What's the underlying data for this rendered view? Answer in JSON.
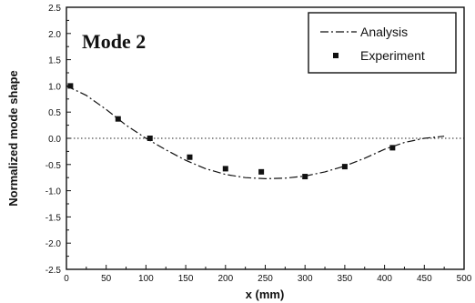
{
  "chart_data": {
    "type": "line",
    "annotation": "Mode 2",
    "xlabel": "x (mm)",
    "ylabel": "Normalized mode shape",
    "xlim": [
      0,
      500
    ],
    "ylim": [
      -2.5,
      2.5
    ],
    "x_ticks": [
      0,
      50,
      100,
      150,
      200,
      250,
      300,
      350,
      400,
      450,
      500
    ],
    "y_ticks": [
      2.5,
      2.0,
      1.5,
      1.0,
      0.5,
      0.0,
      -0.5,
      -1.0,
      -1.5,
      -2.0,
      -2.5
    ],
    "y_tick_labels": [
      "2.5",
      "2.0",
      "1.5",
      "1.0",
      "0.5",
      "0.0",
      "-0.5",
      "-1.0",
      "-1.5",
      "-2.0",
      "-2.5"
    ],
    "zero_line": "dotted",
    "legend_position": "top-right",
    "series": [
      {
        "name": "Analysis",
        "style": "dash-dot line",
        "x": [
          0,
          25,
          50,
          75,
          100,
          125,
          150,
          175,
          200,
          225,
          250,
          275,
          300,
          325,
          350,
          375,
          400,
          425,
          450,
          475
        ],
        "y": [
          1.0,
          0.82,
          0.55,
          0.25,
          0.0,
          -0.22,
          -0.42,
          -0.58,
          -0.69,
          -0.75,
          -0.77,
          -0.76,
          -0.72,
          -0.64,
          -0.53,
          -0.38,
          -0.21,
          -0.08,
          0.0,
          0.04
        ]
      },
      {
        "name": "Experiment",
        "style": "square markers",
        "x": [
          5,
          65,
          105,
          155,
          200,
          245,
          300,
          350,
          410
        ],
        "y": [
          1.0,
          0.37,
          0.0,
          -0.36,
          -0.58,
          -0.64,
          -0.73,
          -0.54,
          -0.18
        ]
      }
    ]
  }
}
